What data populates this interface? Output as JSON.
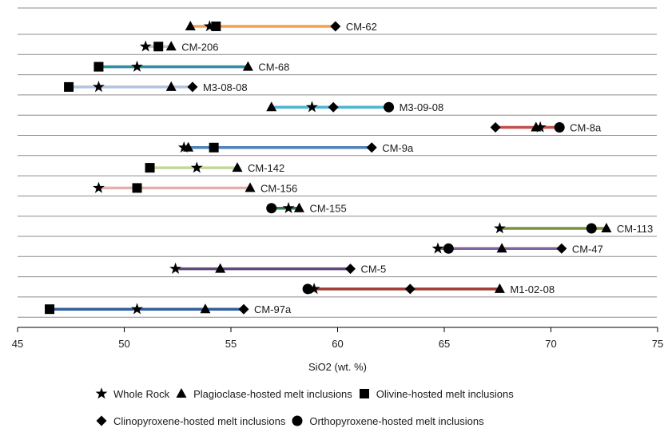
{
  "chart_data": {
    "type": "range-dot",
    "title": "",
    "xlabel": "SiO2 (wt. %)",
    "ylabel": "",
    "xlim": [
      45,
      75
    ],
    "xticks": [
      45,
      50,
      55,
      60,
      65,
      70,
      75
    ],
    "grid": "horizontal",
    "legend_position": "bottom",
    "legend": [
      {
        "key": "whole_rock",
        "label": "Whole Rock",
        "marker": "star"
      },
      {
        "key": "plagioclase",
        "label": "Plagioclase-hosted melt inclusions",
        "marker": "triangle"
      },
      {
        "key": "olivine",
        "label": "Olivine-hosted melt inclusions",
        "marker": "square"
      },
      {
        "key": "clinopyroxene",
        "label": "Clinopyroxene-hosted melt inclusions",
        "marker": "diamond"
      },
      {
        "key": "orthopyroxene",
        "label": "Orthopyroxene-hosted melt inclusions",
        "marker": "circle"
      }
    ],
    "samples": [
      {
        "name": "CM-62",
        "color": "#F5A04B",
        "range": [
          53.1,
          59.9
        ],
        "points": {
          "plagioclase": [
            53.1
          ],
          "whole_rock": [
            54.0
          ],
          "olivine": [
            54.3
          ],
          "clinopyroxene": [
            59.9
          ]
        }
      },
      {
        "name": "CM-206",
        "color": "#C9C9C9",
        "range": [
          51.0,
          52.2
        ],
        "points": {
          "whole_rock": [
            51.0
          ],
          "olivine": [
            51.6
          ],
          "plagioclase": [
            52.2
          ]
        }
      },
      {
        "name": "CM-68",
        "color": "#2E8FA0",
        "range": [
          48.8,
          55.8
        ],
        "points": {
          "olivine": [
            48.8
          ],
          "whole_rock": [
            50.6
          ],
          "plagioclase": [
            55.8
          ]
        }
      },
      {
        "name": "M3-08-08",
        "color": "#B2C3E0",
        "range": [
          47.4,
          53.2
        ],
        "points": {
          "olivine": [
            47.4
          ],
          "whole_rock": [
            48.8
          ],
          "plagioclase": [
            52.2
          ],
          "clinopyroxene": [
            53.2
          ]
        }
      },
      {
        "name": "M3-09-08",
        "color": "#4BB5D4",
        "range": [
          56.9,
          62.4
        ],
        "points": {
          "plagioclase": [
            56.9
          ],
          "whole_rock": [
            58.8
          ],
          "clinopyroxene": [
            59.8
          ],
          "orthopyroxene": [
            62.4
          ]
        }
      },
      {
        "name": "CM-8a",
        "color": "#C0504D",
        "range": [
          67.4,
          70.4
        ],
        "points": {
          "clinopyroxene": [
            67.4
          ],
          "plagioclase": [
            69.3
          ],
          "whole_rock": [
            69.5
          ],
          "orthopyroxene": [
            70.4
          ]
        }
      },
      {
        "name": "CM-9a",
        "color": "#4F81BD",
        "range": [
          52.8,
          61.6
        ],
        "points": {
          "whole_rock": [
            52.8
          ],
          "plagioclase": [
            53.0
          ],
          "olivine": [
            54.2
          ],
          "clinopyroxene": [
            61.6
          ]
        }
      },
      {
        "name": "CM-142",
        "color": "#C4D79B",
        "range": [
          51.2,
          55.3
        ],
        "points": {
          "olivine": [
            51.2
          ],
          "whole_rock": [
            53.4
          ],
          "plagioclase": [
            55.3
          ]
        }
      },
      {
        "name": "CM-156",
        "color": "#E6B0AA",
        "range": [
          48.8,
          55.9
        ],
        "points": {
          "whole_rock": [
            48.8
          ],
          "olivine": [
            50.6
          ],
          "plagioclase": [
            55.9
          ]
        }
      },
      {
        "name": "CM-155",
        "color": "#2E7D4F",
        "range": [
          56.9,
          58.2
        ],
        "points": {
          "orthopyroxene": [
            56.9
          ],
          "whole_rock": [
            57.7
          ],
          "plagioclase": [
            58.2
          ]
        }
      },
      {
        "name": "CM-113",
        "color": "#77933C",
        "range": [
          67.6,
          72.6
        ],
        "points": {
          "whole_rock": [
            67.6
          ],
          "orthopyroxene": [
            71.9
          ],
          "plagioclase": [
            72.6
          ]
        }
      },
      {
        "name": "CM-47",
        "color": "#8064A2",
        "range": [
          64.7,
          70.5
        ],
        "points": {
          "whole_rock": [
            64.7
          ],
          "orthopyroxene": [
            65.2
          ],
          "plagioclase": [
            67.7
          ],
          "clinopyroxene": [
            70.5
          ]
        }
      },
      {
        "name": "CM-5",
        "color": "#604A7B",
        "range": [
          52.4,
          60.6
        ],
        "points": {
          "whole_rock": [
            52.4
          ],
          "plagioclase": [
            54.5
          ],
          "clinopyroxene": [
            60.6
          ]
        }
      },
      {
        "name": "M1-02-08",
        "color": "#A23B37",
        "range": [
          58.6,
          67.6
        ],
        "points": {
          "orthopyroxene": [
            58.6
          ],
          "whole_rock": [
            58.9
          ],
          "clinopyroxene": [
            63.4
          ],
          "plagioclase": [
            67.6
          ]
        }
      },
      {
        "name": "CM-97a",
        "color": "#2F5F9E",
        "range": [
          46.5,
          55.6
        ],
        "points": {
          "olivine": [
            46.5
          ],
          "whole_rock": [
            50.6
          ],
          "plagioclase": [
            53.8
          ],
          "clinopyroxene": [
            55.6
          ]
        }
      }
    ]
  }
}
